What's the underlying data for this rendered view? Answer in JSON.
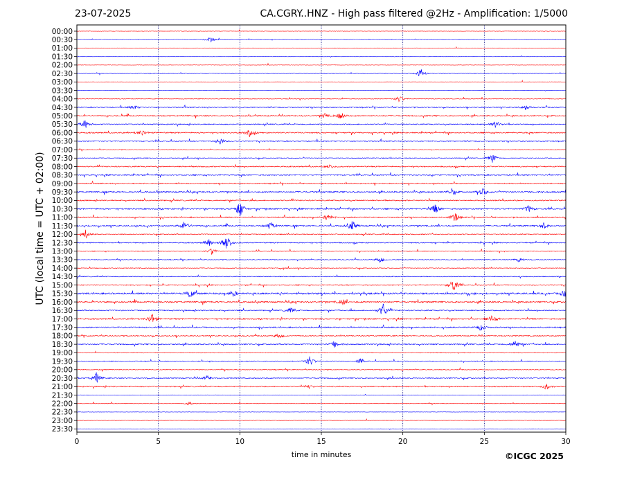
{
  "header": {
    "date": "23-07-2025",
    "title": "CA.CGRY..HNZ - High pass filtered @2Hz - Amplification: 1/5000"
  },
  "copyright": "©ICGC 2025",
  "colors": {
    "red": "#ff0000",
    "blue": "#0000ff",
    "axis": "#000000",
    "grid": "#000080"
  },
  "chart_data": {
    "type": "line",
    "title": "CA.CGRY..HNZ - High pass filtered @2Hz - Amplification: 1/5000",
    "xlabel": "time in minutes",
    "ylabel": "UTC (local time = UTC + 02:00)",
    "xlim": [
      0,
      30
    ],
    "x_ticks": [
      0,
      5,
      10,
      15,
      20,
      25,
      30
    ],
    "vertical_gridlines_at": [
      5,
      10,
      15,
      20,
      25
    ],
    "row_labels": [
      "00:00",
      "00:30",
      "01:00",
      "01:30",
      "02:00",
      "02:30",
      "03:00",
      "03:30",
      "04:00",
      "04:30",
      "05:00",
      "05:30",
      "06:00",
      "06:30",
      "07:00",
      "07:30",
      "08:00",
      "08:30",
      "09:00",
      "09:30",
      "10:00",
      "10:30",
      "11:00",
      "11:30",
      "12:00",
      "12:30",
      "13:00",
      "13:30",
      "14:00",
      "14:30",
      "15:00",
      "15:30",
      "16:00",
      "16:30",
      "17:00",
      "17:30",
      "18:00",
      "18:30",
      "19:00",
      "19:30",
      "20:00",
      "20:30",
      "21:00",
      "21:30",
      "22:00",
      "22:30",
      "23:00",
      "23:30"
    ],
    "row_colors": [
      "red",
      "blue"
    ],
    "row_activity": [
      0.05,
      0.1,
      0.05,
      0.05,
      0.05,
      0.1,
      0.05,
      0.05,
      0.15,
      0.35,
      0.45,
      0.35,
      0.45,
      0.35,
      0.15,
      0.25,
      0.4,
      0.45,
      0.4,
      0.55,
      0.4,
      0.5,
      0.45,
      0.55,
      0.3,
      0.35,
      0.25,
      0.2,
      0.2,
      0.25,
      0.35,
      0.65,
      0.6,
      0.4,
      0.5,
      0.45,
      0.35,
      0.45,
      0.2,
      0.25,
      0.2,
      0.35,
      0.35,
      0.05,
      0.1,
      0.02,
      0.02,
      0.02
    ],
    "events": [
      {
        "row": 1,
        "minute": 8.2,
        "amp": 0.5
      },
      {
        "row": 5,
        "minute": 21.1,
        "amp": 0.8
      },
      {
        "row": 8,
        "minute": 19.8,
        "amp": 0.6
      },
      {
        "row": 9,
        "minute": 3.5,
        "amp": 0.4
      },
      {
        "row": 9,
        "minute": 27.5,
        "amp": 0.4
      },
      {
        "row": 10,
        "minute": 15.2,
        "amp": 0.4
      },
      {
        "row": 10,
        "minute": 16.2,
        "amp": 0.6
      },
      {
        "row": 11,
        "minute": 0.5,
        "amp": 0.8
      },
      {
        "row": 11,
        "minute": 25.7,
        "amp": 0.6
      },
      {
        "row": 12,
        "minute": 4.0,
        "amp": 0.5
      },
      {
        "row": 12,
        "minute": 10.6,
        "amp": 0.6
      },
      {
        "row": 13,
        "minute": 8.8,
        "amp": 0.6
      },
      {
        "row": 15,
        "minute": 25.5,
        "amp": 0.8
      },
      {
        "row": 16,
        "minute": 15.5,
        "amp": 0.4
      },
      {
        "row": 19,
        "minute": 23.0,
        "amp": 0.5
      },
      {
        "row": 19,
        "minute": 24.9,
        "amp": 0.6
      },
      {
        "row": 21,
        "minute": 10.0,
        "amp": 1.6
      },
      {
        "row": 21,
        "minute": 22.0,
        "amp": 0.8
      },
      {
        "row": 21,
        "minute": 27.7,
        "amp": 0.6
      },
      {
        "row": 22,
        "minute": 15.4,
        "amp": 0.6
      },
      {
        "row": 22,
        "minute": 23.2,
        "amp": 0.8
      },
      {
        "row": 23,
        "minute": 6.6,
        "amp": 0.8
      },
      {
        "row": 23,
        "minute": 11.9,
        "amp": 0.7
      },
      {
        "row": 23,
        "minute": 16.9,
        "amp": 0.8
      },
      {
        "row": 23,
        "minute": 28.6,
        "amp": 0.6
      },
      {
        "row": 24,
        "minute": 0.6,
        "amp": 0.6
      },
      {
        "row": 25,
        "minute": 8.1,
        "amp": 0.8
      },
      {
        "row": 25,
        "minute": 9.2,
        "amp": 1.6
      },
      {
        "row": 26,
        "minute": 8.3,
        "amp": 0.6
      },
      {
        "row": 27,
        "minute": 18.6,
        "amp": 0.6
      },
      {
        "row": 27,
        "minute": 27.1,
        "amp": 0.5
      },
      {
        "row": 30,
        "minute": 23.1,
        "amp": 1.2
      },
      {
        "row": 31,
        "minute": 7.0,
        "amp": 0.7
      },
      {
        "row": 31,
        "minute": 9.6,
        "amp": 0.6
      },
      {
        "row": 31,
        "minute": 30.0,
        "amp": 0.9
      },
      {
        "row": 32,
        "minute": 16.3,
        "amp": 0.5
      },
      {
        "row": 33,
        "minute": 13.1,
        "amp": 0.5
      },
      {
        "row": 33,
        "minute": 18.8,
        "amp": 1.2
      },
      {
        "row": 34,
        "minute": 4.6,
        "amp": 1.0
      },
      {
        "row": 34,
        "minute": 25.5,
        "amp": 0.6
      },
      {
        "row": 35,
        "minute": 24.8,
        "amp": 0.6
      },
      {
        "row": 36,
        "minute": 12.4,
        "amp": 0.5
      },
      {
        "row": 37,
        "minute": 15.8,
        "amp": 0.6
      },
      {
        "row": 37,
        "minute": 26.9,
        "amp": 0.7
      },
      {
        "row": 39,
        "minute": 14.3,
        "amp": 0.9
      },
      {
        "row": 39,
        "minute": 17.4,
        "amp": 0.4
      },
      {
        "row": 41,
        "minute": 1.2,
        "amp": 0.9
      },
      {
        "row": 41,
        "minute": 8.0,
        "amp": 0.5
      },
      {
        "row": 42,
        "minute": 14.2,
        "amp": 0.4
      },
      {
        "row": 42,
        "minute": 28.8,
        "amp": 0.5
      },
      {
        "row": 44,
        "minute": 6.9,
        "amp": 0.3
      }
    ]
  }
}
